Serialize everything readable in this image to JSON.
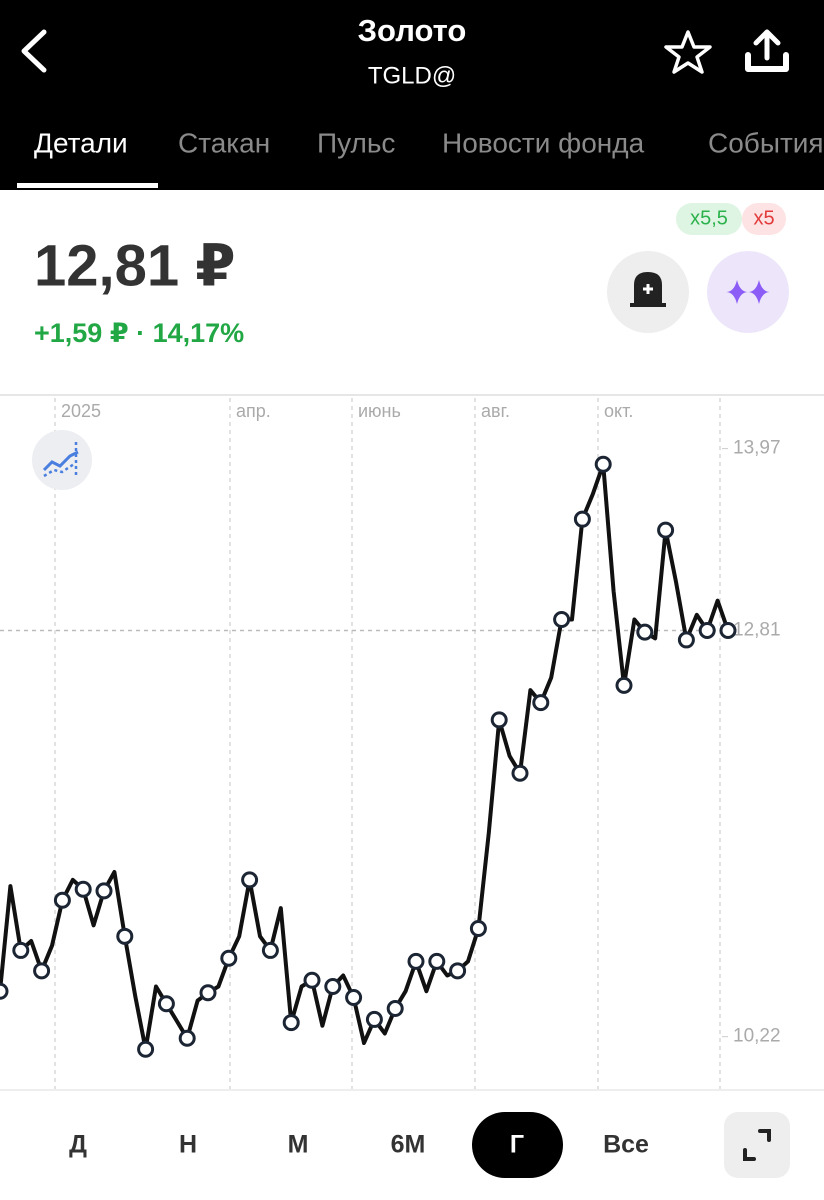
{
  "header": {
    "title": "Золото",
    "subtitle": "TGLD@"
  },
  "tabs": [
    "Детали",
    "Стакан",
    "Пульс",
    "Новости фонда",
    "События"
  ],
  "badges": [
    "x5,5",
    "x5"
  ],
  "price": "12,81 ₽",
  "change": "+1,59 ₽ · 14,17%",
  "chart_data": {
    "type": "line",
    "x_labels": [
      "2025",
      "апр.",
      "июнь",
      "авг.",
      "окт."
    ],
    "ylim": [
      9.88,
      14.28
    ],
    "yticks": [
      {
        "value": 13.97,
        "label": "13,97"
      },
      {
        "value": 12.81,
        "label": "12,81"
      },
      {
        "value": 10.22,
        "label": "10,22"
      }
    ],
    "series": [
      {
        "color": "#111111",
        "values": [
          10.51,
          11.18,
          10.77,
          10.83,
          10.64,
          10.8,
          11.09,
          11.22,
          11.16,
          10.93,
          11.15,
          11.27,
          10.86,
          10.48,
          10.14,
          10.54,
          10.43,
          10.32,
          10.21,
          10.45,
          10.5,
          10.54,
          10.72,
          10.86,
          11.22,
          10.86,
          10.77,
          11.04,
          10.31,
          10.54,
          10.58,
          10.29,
          10.54,
          10.61,
          10.47,
          10.18,
          10.33,
          10.24,
          10.4,
          10.51,
          10.7,
          10.51,
          10.7,
          10.61,
          10.64,
          10.7,
          10.91,
          11.52,
          12.24,
          12.01,
          11.9,
          12.43,
          12.35,
          12.51,
          12.88,
          12.88,
          13.52,
          13.68,
          13.87,
          13.06,
          12.46,
          12.88,
          12.8,
          12.76,
          13.45,
          13.12,
          12.75,
          12.91,
          12.81,
          13.0,
          12.81
        ]
      }
    ]
  },
  "periods": [
    "Д",
    "Н",
    "М",
    "6М",
    "Г",
    "Все"
  ]
}
